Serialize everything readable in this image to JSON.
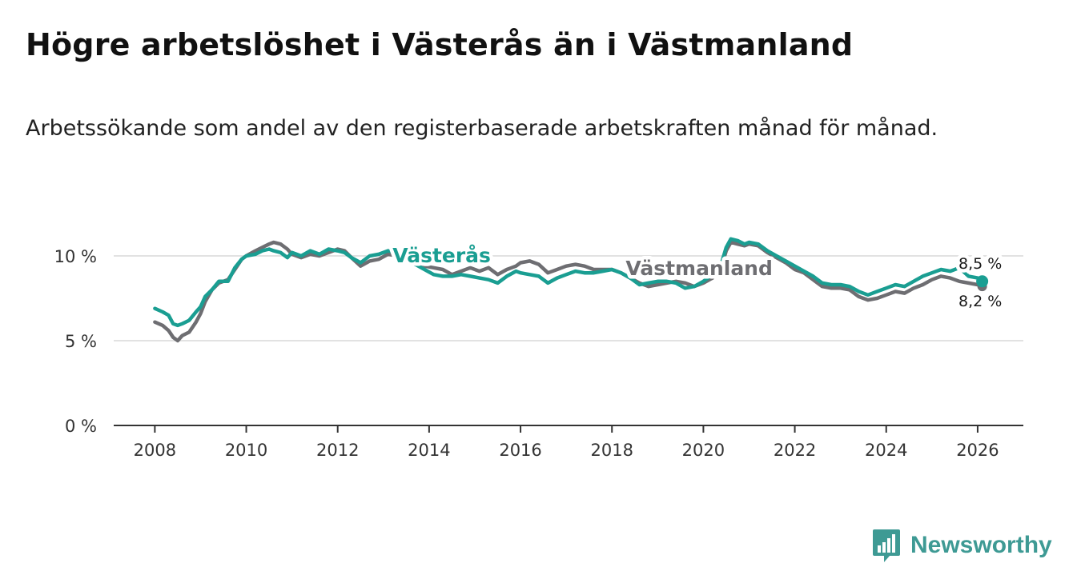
{
  "header": {
    "title": "Högre arbetslöshet i Västerås än i Västmanland",
    "subtitle": "Arbetssökande som andel av den registerbaserade arbetskraften månad för månad."
  },
  "brand": {
    "name": "Newsworthy",
    "color": "#3e9a94",
    "icon": "newsworthy-logo-icon"
  },
  "colors": {
    "vasteras": "#1a9e92",
    "vastmanland": "#6e6e72",
    "grid": "#d8d8d8",
    "axis": "#333333"
  },
  "chart_data": {
    "type": "line",
    "title": "Högre arbetslöshet i Västerås än i Västmanland",
    "xlabel": "",
    "ylabel": "",
    "xlim": [
      2007.1,
      2027.0
    ],
    "ylim": [
      0,
      10
    ],
    "y_ticks": [
      {
        "value": 0,
        "label": "0 %"
      },
      {
        "value": 5,
        "label": "5 %"
      },
      {
        "value": 10,
        "label": "10 %"
      }
    ],
    "x_ticks": [
      {
        "value": 2008,
        "label": "2008"
      },
      {
        "value": 2010,
        "label": "2010"
      },
      {
        "value": 2012,
        "label": "2012"
      },
      {
        "value": 2014,
        "label": "2014"
      },
      {
        "value": 2016,
        "label": "2016"
      },
      {
        "value": 2018,
        "label": "2018"
      },
      {
        "value": 2020,
        "label": "2020"
      },
      {
        "value": 2022,
        "label": "2022"
      },
      {
        "value": 2024,
        "label": "2024"
      },
      {
        "value": 2026,
        "label": "2026"
      }
    ],
    "grid": true,
    "series": [
      {
        "name": "Västmanland",
        "color": "#6e6e72",
        "label": "Västmanland",
        "end_label": "8,2 %",
        "points": [
          [
            2008.0,
            6.1
          ],
          [
            2008.17,
            5.9
          ],
          [
            2008.3,
            5.6
          ],
          [
            2008.4,
            5.2
          ],
          [
            2008.5,
            5.0
          ],
          [
            2008.6,
            5.3
          ],
          [
            2008.75,
            5.5
          ],
          [
            2008.9,
            6.1
          ],
          [
            2009.0,
            6.6
          ],
          [
            2009.1,
            7.3
          ],
          [
            2009.25,
            8.0
          ],
          [
            2009.4,
            8.4
          ],
          [
            2009.6,
            8.6
          ],
          [
            2009.75,
            9.2
          ],
          [
            2009.9,
            9.8
          ],
          [
            2010.0,
            10.0
          ],
          [
            2010.2,
            10.3
          ],
          [
            2010.35,
            10.5
          ],
          [
            2010.5,
            10.7
          ],
          [
            2010.6,
            10.8
          ],
          [
            2010.75,
            10.7
          ],
          [
            2010.9,
            10.4
          ],
          [
            2011.0,
            10.1
          ],
          [
            2011.2,
            9.9
          ],
          [
            2011.4,
            10.1
          ],
          [
            2011.6,
            10.0
          ],
          [
            2011.8,
            10.2
          ],
          [
            2012.0,
            10.4
          ],
          [
            2012.15,
            10.3
          ],
          [
            2012.3,
            9.9
          ],
          [
            2012.5,
            9.4
          ],
          [
            2012.7,
            9.7
          ],
          [
            2012.9,
            9.8
          ],
          [
            2013.1,
            10.1
          ],
          [
            2013.3,
            10.0
          ],
          [
            2013.5,
            9.7
          ],
          [
            2013.7,
            9.5
          ],
          [
            2013.9,
            9.4
          ],
          [
            2014.1,
            9.3
          ],
          [
            2014.3,
            9.2
          ],
          [
            2014.5,
            8.9
          ],
          [
            2014.7,
            9.1
          ],
          [
            2014.9,
            9.3
          ],
          [
            2015.1,
            9.1
          ],
          [
            2015.3,
            9.3
          ],
          [
            2015.5,
            8.9
          ],
          [
            2015.7,
            9.2
          ],
          [
            2015.9,
            9.4
          ],
          [
            2016.0,
            9.6
          ],
          [
            2016.2,
            9.7
          ],
          [
            2016.4,
            9.5
          ],
          [
            2016.6,
            9.0
          ],
          [
            2016.8,
            9.2
          ],
          [
            2017.0,
            9.4
          ],
          [
            2017.2,
            9.5
          ],
          [
            2017.4,
            9.4
          ],
          [
            2017.6,
            9.2
          ],
          [
            2017.8,
            9.2
          ],
          [
            2018.0,
            9.2
          ],
          [
            2018.2,
            9.0
          ],
          [
            2018.4,
            8.7
          ],
          [
            2018.6,
            8.4
          ],
          [
            2018.8,
            8.2
          ],
          [
            2019.0,
            8.3
          ],
          [
            2019.2,
            8.4
          ],
          [
            2019.4,
            8.5
          ],
          [
            2019.6,
            8.4
          ],
          [
            2019.8,
            8.2
          ],
          [
            2020.0,
            8.4
          ],
          [
            2020.2,
            8.7
          ],
          [
            2020.4,
            9.4
          ],
          [
            2020.5,
            10.3
          ],
          [
            2020.6,
            10.8
          ],
          [
            2020.75,
            10.7
          ],
          [
            2020.9,
            10.6
          ],
          [
            2021.0,
            10.7
          ],
          [
            2021.2,
            10.6
          ],
          [
            2021.4,
            10.2
          ],
          [
            2021.6,
            9.9
          ],
          [
            2021.8,
            9.6
          ],
          [
            2022.0,
            9.2
          ],
          [
            2022.2,
            9.0
          ],
          [
            2022.4,
            8.6
          ],
          [
            2022.6,
            8.2
          ],
          [
            2022.8,
            8.1
          ],
          [
            2023.0,
            8.1
          ],
          [
            2023.2,
            8.0
          ],
          [
            2023.4,
            7.6
          ],
          [
            2023.6,
            7.4
          ],
          [
            2023.8,
            7.5
          ],
          [
            2024.0,
            7.7
          ],
          [
            2024.2,
            7.9
          ],
          [
            2024.4,
            7.8
          ],
          [
            2024.6,
            8.1
          ],
          [
            2024.8,
            8.3
          ],
          [
            2025.0,
            8.6
          ],
          [
            2025.2,
            8.8
          ],
          [
            2025.4,
            8.7
          ],
          [
            2025.6,
            8.5
          ],
          [
            2025.8,
            8.4
          ],
          [
            2026.0,
            8.3
          ],
          [
            2026.1,
            8.2
          ]
        ]
      },
      {
        "name": "Västerås",
        "color": "#1a9e92",
        "label": "Västerås",
        "end_label": "8,5 %",
        "points": [
          [
            2008.0,
            6.9
          ],
          [
            2008.17,
            6.7
          ],
          [
            2008.3,
            6.5
          ],
          [
            2008.4,
            6.0
          ],
          [
            2008.5,
            5.9
          ],
          [
            2008.6,
            6.0
          ],
          [
            2008.75,
            6.2
          ],
          [
            2008.9,
            6.7
          ],
          [
            2009.0,
            7.0
          ],
          [
            2009.1,
            7.6
          ],
          [
            2009.25,
            8.0
          ],
          [
            2009.4,
            8.5
          ],
          [
            2009.6,
            8.5
          ],
          [
            2009.75,
            9.3
          ],
          [
            2009.9,
            9.8
          ],
          [
            2010.0,
            10.0
          ],
          [
            2010.2,
            10.1
          ],
          [
            2010.35,
            10.3
          ],
          [
            2010.5,
            10.4
          ],
          [
            2010.6,
            10.3
          ],
          [
            2010.75,
            10.2
          ],
          [
            2010.9,
            9.9
          ],
          [
            2011.0,
            10.2
          ],
          [
            2011.2,
            10.0
          ],
          [
            2011.4,
            10.3
          ],
          [
            2011.6,
            10.1
          ],
          [
            2011.8,
            10.4
          ],
          [
            2012.0,
            10.3
          ],
          [
            2012.15,
            10.2
          ],
          [
            2012.3,
            9.9
          ],
          [
            2012.5,
            9.6
          ],
          [
            2012.7,
            10.0
          ],
          [
            2012.9,
            10.1
          ],
          [
            2013.1,
            10.3
          ],
          [
            2013.3,
            10.2
          ],
          [
            2013.5,
            9.8
          ],
          [
            2013.7,
            9.5
          ],
          [
            2013.9,
            9.2
          ],
          [
            2014.1,
            8.9
          ],
          [
            2014.3,
            8.8
          ],
          [
            2014.5,
            8.8
          ],
          [
            2014.7,
            8.9
          ],
          [
            2014.9,
            8.8
          ],
          [
            2015.1,
            8.7
          ],
          [
            2015.3,
            8.6
          ],
          [
            2015.5,
            8.4
          ],
          [
            2015.7,
            8.8
          ],
          [
            2015.9,
            9.1
          ],
          [
            2016.0,
            9.0
          ],
          [
            2016.2,
            8.9
          ],
          [
            2016.4,
            8.8
          ],
          [
            2016.6,
            8.4
          ],
          [
            2016.8,
            8.7
          ],
          [
            2017.0,
            8.9
          ],
          [
            2017.2,
            9.1
          ],
          [
            2017.4,
            9.0
          ],
          [
            2017.6,
            9.0
          ],
          [
            2017.8,
            9.1
          ],
          [
            2018.0,
            9.2
          ],
          [
            2018.2,
            9.0
          ],
          [
            2018.4,
            8.7
          ],
          [
            2018.6,
            8.3
          ],
          [
            2018.8,
            8.4
          ],
          [
            2019.0,
            8.5
          ],
          [
            2019.2,
            8.5
          ],
          [
            2019.4,
            8.4
          ],
          [
            2019.6,
            8.1
          ],
          [
            2019.8,
            8.2
          ],
          [
            2020.0,
            8.5
          ],
          [
            2020.2,
            8.9
          ],
          [
            2020.4,
            9.6
          ],
          [
            2020.5,
            10.5
          ],
          [
            2020.6,
            11.0
          ],
          [
            2020.75,
            10.9
          ],
          [
            2020.9,
            10.7
          ],
          [
            2021.0,
            10.8
          ],
          [
            2021.2,
            10.7
          ],
          [
            2021.4,
            10.3
          ],
          [
            2021.6,
            10.0
          ],
          [
            2021.8,
            9.7
          ],
          [
            2022.0,
            9.4
          ],
          [
            2022.2,
            9.1
          ],
          [
            2022.4,
            8.8
          ],
          [
            2022.6,
            8.4
          ],
          [
            2022.8,
            8.3
          ],
          [
            2023.0,
            8.3
          ],
          [
            2023.2,
            8.2
          ],
          [
            2023.4,
            7.9
          ],
          [
            2023.6,
            7.7
          ],
          [
            2023.8,
            7.9
          ],
          [
            2024.0,
            8.1
          ],
          [
            2024.2,
            8.3
          ],
          [
            2024.4,
            8.2
          ],
          [
            2024.6,
            8.5
          ],
          [
            2024.8,
            8.8
          ],
          [
            2025.0,
            9.0
          ],
          [
            2025.2,
            9.2
          ],
          [
            2025.4,
            9.1
          ],
          [
            2025.6,
            9.3
          ],
          [
            2025.8,
            8.8
          ],
          [
            2026.0,
            8.7
          ],
          [
            2026.1,
            8.5
          ]
        ]
      }
    ]
  }
}
